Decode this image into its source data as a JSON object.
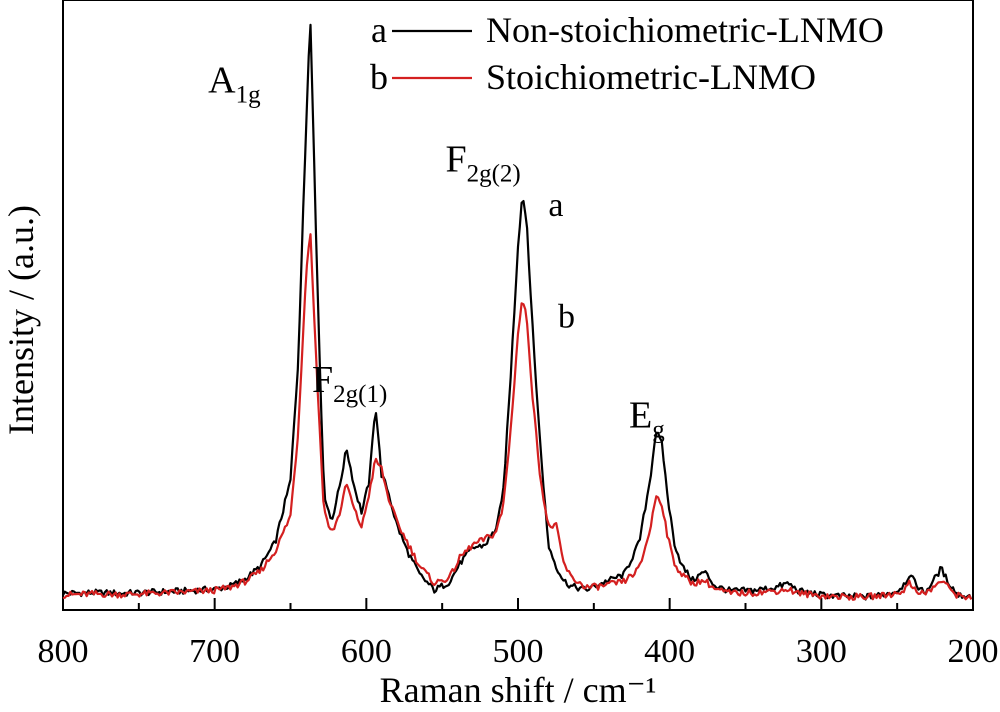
{
  "chart_data": {
    "type": "line",
    "title": "",
    "xlabel": "Raman shift / cm⁻¹",
    "ylabel": "Intensity / (a.u.)",
    "xlim": [
      800,
      200
    ],
    "x_reversed": true,
    "ylim": [
      0,
      100
    ],
    "y_tick_labels_shown": false,
    "x_ticks": [
      800,
      700,
      600,
      500,
      400,
      300,
      200
    ],
    "x_tick_labels": [
      "800",
      "700",
      "600",
      "500",
      "400",
      "300",
      "200"
    ],
    "grid": false,
    "legend": {
      "position": "top-right",
      "items": [
        {
          "letter": "a",
          "label": "Non-stoichiometric-LNMO",
          "color": "#000000"
        },
        {
          "letter": "b",
          "label": "Stoichiometric-LNMO",
          "color": "#d42020"
        }
      ]
    },
    "series": [
      {
        "name": "Non-stoichiometric-LNMO",
        "letter": "a",
        "color": "#000000",
        "x": [
          800,
          780,
          760,
          740,
          720,
          700,
          690,
          680,
          670,
          660,
          650,
          645,
          640,
          637,
          633,
          628,
          623,
          618,
          613,
          608,
          603,
          598,
          594,
          590,
          586,
          580,
          573,
          565,
          555,
          545,
          538,
          530,
          522,
          515,
          510,
          505,
          500,
          497,
          494,
          490,
          485,
          480,
          475,
          470,
          465,
          455,
          445,
          430,
          420,
          413,
          409,
          405,
          401,
          397,
          392,
          385,
          377,
          370,
          360,
          345,
          330,
          322,
          315,
          300,
          285,
          270,
          260,
          250,
          245,
          242,
          238,
          232,
          226,
          221,
          217,
          210,
          203,
          200
        ],
        "y": [
          0.8,
          0.9,
          0.8,
          1.0,
          1.2,
          1.5,
          2.0,
          3.2,
          5.3,
          9.5,
          20.0,
          40.0,
          78.0,
          100.0,
          60.0,
          18.0,
          13.0,
          18.5,
          25.5,
          19.0,
          14.5,
          20.0,
          33.0,
          21.0,
          18.5,
          12.5,
          8.0,
          4.0,
          1.3,
          2.8,
          6.0,
          8.5,
          9.0,
          11.5,
          17.0,
          37.0,
          60.0,
          69.0,
          63.0,
          44.0,
          25.0,
          9.0,
          5.5,
          3.0,
          2.0,
          1.4,
          2.5,
          4.0,
          9.5,
          20.0,
          28.5,
          26.0,
          16.5,
          9.5,
          5.5,
          3.0,
          4.5,
          2.0,
          1.2,
          1.3,
          1.8,
          2.5,
          1.2,
          0.5,
          0.3,
          0.2,
          0.5,
          1.2,
          2.5,
          4.0,
          2.5,
          0.8,
          3.0,
          5.0,
          3.0,
          0.5,
          0.3,
          0.2
        ]
      },
      {
        "name": "Stoichiometric-LNMO",
        "letter": "b",
        "color": "#d42020",
        "x": [
          800,
          780,
          760,
          740,
          720,
          700,
          690,
          680,
          670,
          660,
          650,
          645,
          640,
          637,
          633,
          628,
          623,
          618,
          613,
          608,
          603,
          598,
          594,
          590,
          586,
          580,
          573,
          565,
          555,
          545,
          538,
          530,
          522,
          515,
          510,
          505,
          500,
          497,
          494,
          490,
          485,
          480,
          475,
          470,
          465,
          455,
          445,
          430,
          420,
          413,
          409,
          405,
          401,
          397,
          392,
          385,
          377,
          370,
          360,
          345,
          330,
          322,
          315,
          300,
          285,
          270,
          260,
          250,
          245,
          242,
          238,
          232,
          226,
          221,
          217,
          210,
          203,
          200
        ],
        "y": [
          0.5,
          0.7,
          0.6,
          0.8,
          1.0,
          1.3,
          1.8,
          2.8,
          4.5,
          8.0,
          14.0,
          28.0,
          54.0,
          63.0,
          40.0,
          15.0,
          11.0,
          14.0,
          19.5,
          15.0,
          12.0,
          18.0,
          23.5,
          22.0,
          17.5,
          13.0,
          9.5,
          5.5,
          2.5,
          3.5,
          7.0,
          9.0,
          10.0,
          11.0,
          15.0,
          28.0,
          45.0,
          51.0,
          47.0,
          33.0,
          20.0,
          12.0,
          12.5,
          6.0,
          3.5,
          1.8,
          2.0,
          2.8,
          5.0,
          11.5,
          17.5,
          16.0,
          10.0,
          6.0,
          4.0,
          2.5,
          3.0,
          1.5,
          0.8,
          0.9,
          1.2,
          1.5,
          0.8,
          0.4,
          0.2,
          0.2,
          0.4,
          0.8,
          1.5,
          2.5,
          1.5,
          0.6,
          1.8,
          3.0,
          2.0,
          0.4,
          0.2,
          0.1
        ]
      }
    ],
    "annotations": [
      {
        "id": "a1g",
        "main": "A",
        "sub": "1g",
        "x": 687,
        "y": 86
      },
      {
        "id": "f2g1",
        "main": "F",
        "sub": "2g(1)",
        "x": 611,
        "y": 35
      },
      {
        "id": "f2g2",
        "main": "F",
        "sub": "2g(2)",
        "x": 523,
        "y": 72.5
      },
      {
        "id": "eg",
        "main": "E",
        "sub": "g",
        "x": 415,
        "y": 29
      },
      {
        "id": "curve-a",
        "main": "a",
        "sub": "",
        "x": 475,
        "y": 65
      },
      {
        "id": "curve-b",
        "main": "b",
        "sub": "",
        "x": 468,
        "y": 46
      }
    ]
  }
}
